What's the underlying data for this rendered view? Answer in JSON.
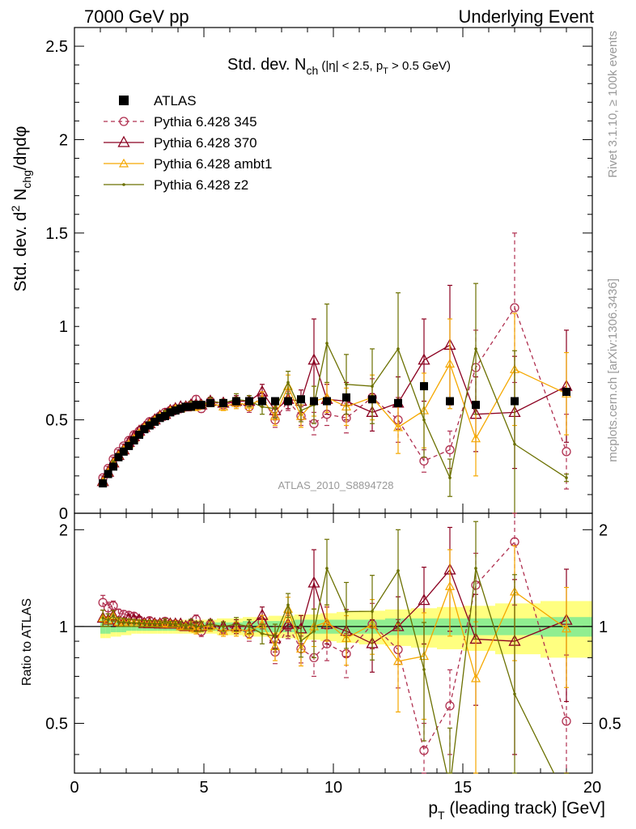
{
  "header": {
    "left": "7000 GeV pp",
    "right": "Underlying Event"
  },
  "side_labels": {
    "rivet": "Rivet 3.1.10, ≥ 100k events",
    "mcplots": "mcplots.cern.ch [arXiv:1306.3436]"
  },
  "colors": {
    "atlas": "#000000",
    "p345": "#b03050",
    "p370": "#8b0020",
    "ambt1": "#f5a800",
    "z2": "#6b7000",
    "band_green": "#90ee90",
    "band_yellow": "#ffff80",
    "watermark": "#999999"
  },
  "chart_data": {
    "type": "line",
    "title_parts": {
      "main": "Std. dev. N",
      "sub": "ch",
      "rest": " (|η| < 2.5, p",
      "sub2": "T",
      "rest2": " > 0.5 GeV)"
    },
    "ylabel_parts": {
      "a": "Std. dev. d",
      "sup": "2",
      "b": " N",
      "sub": "chg",
      "c": "/dηdφ"
    },
    "xlabel_parts": {
      "a": "p",
      "sub": "T",
      "b": " (leading track) [GeV]"
    },
    "ratio_ylabel": "Ratio to ATLAS",
    "watermark": "ATLAS_2010_S8894728",
    "xlim": [
      0,
      20
    ],
    "ylim": [
      0,
      2.6
    ],
    "ratio_ylim": [
      0.35,
      2.25
    ],
    "x_ticks": [
      "0",
      "5",
      "10",
      "15",
      "20"
    ],
    "y_ticks": [
      "0",
      "0.5",
      "1",
      "1.5",
      "2",
      "2.5"
    ],
    "ratio_ticks": [
      "0.5",
      "1",
      "2"
    ],
    "legend_position": "top-left",
    "atlas": {
      "name": "ATLAS",
      "x": [
        1.1,
        1.3,
        1.5,
        1.7,
        1.9,
        2.1,
        2.3,
        2.5,
        2.7,
        2.9,
        3.1,
        3.3,
        3.5,
        3.7,
        3.9,
        4.1,
        4.3,
        4.5,
        4.7,
        4.9,
        5.25,
        5.75,
        6.25,
        6.75,
        7.25,
        7.75,
        8.25,
        8.75,
        9.25,
        9.75,
        10.5,
        11.5,
        12.5,
        13.5,
        14.5,
        15.5,
        17.0,
        19.0
      ],
      "y": [
        0.16,
        0.21,
        0.25,
        0.3,
        0.33,
        0.36,
        0.39,
        0.42,
        0.45,
        0.47,
        0.49,
        0.51,
        0.52,
        0.54,
        0.55,
        0.56,
        0.57,
        0.57,
        0.58,
        0.58,
        0.59,
        0.59,
        0.6,
        0.6,
        0.6,
        0.6,
        0.6,
        0.61,
        0.6,
        0.6,
        0.62,
        0.61,
        0.59,
        0.68,
        0.6,
        0.58,
        0.6,
        0.65
      ],
      "band_yellow": [
        0.08,
        0.08,
        0.07,
        0.07,
        0.06,
        0.06,
        0.05,
        0.05,
        0.05,
        0.05,
        0.05,
        0.05,
        0.05,
        0.05,
        0.05,
        0.05,
        0.05,
        0.05,
        0.05,
        0.05,
        0.05,
        0.06,
        0.06,
        0.07,
        0.07,
        0.08,
        0.08,
        0.09,
        0.09,
        0.1,
        0.11,
        0.12,
        0.13,
        0.14,
        0.15,
        0.16,
        0.18,
        0.2
      ],
      "band_green": [
        0.05,
        0.05,
        0.04,
        0.04,
        0.04,
        0.03,
        0.03,
        0.03,
        0.03,
        0.03,
        0.03,
        0.03,
        0.03,
        0.03,
        0.03,
        0.03,
        0.03,
        0.03,
        0.03,
        0.03,
        0.03,
        0.03,
        0.03,
        0.04,
        0.04,
        0.04,
        0.04,
        0.05,
        0.05,
        0.05,
        0.05,
        0.05,
        0.06,
        0.06,
        0.06,
        0.06,
        0.06,
        0.07
      ]
    },
    "series": [
      {
        "name": "Pythia 6.428 345",
        "marker": "circle",
        "dashed": true,
        "x": [
          1.1,
          1.3,
          1.5,
          1.7,
          1.9,
          2.1,
          2.3,
          2.5,
          2.7,
          2.9,
          3.1,
          3.3,
          3.5,
          3.7,
          3.9,
          4.1,
          4.3,
          4.5,
          4.7,
          4.9,
          5.25,
          5.75,
          6.25,
          6.75,
          7.25,
          7.75,
          8.25,
          8.75,
          9.25,
          9.75,
          10.5,
          11.5,
          12.5,
          13.5,
          14.5,
          15.5,
          17.0,
          19.0
        ],
        "y": [
          0.19,
          0.24,
          0.29,
          0.33,
          0.36,
          0.39,
          0.42,
          0.44,
          0.46,
          0.49,
          0.5,
          0.52,
          0.54,
          0.55,
          0.56,
          0.56,
          0.57,
          0.58,
          0.61,
          0.56,
          0.6,
          0.58,
          0.6,
          0.57,
          0.62,
          0.5,
          0.6,
          0.52,
          0.48,
          0.53,
          0.51,
          0.62,
          0.5,
          0.28,
          0.34,
          0.78,
          1.1,
          0.33
        ],
        "err": [
          0.01,
          0.01,
          0.01,
          0.01,
          0.01,
          0.01,
          0.01,
          0.01,
          0.01,
          0.01,
          0.01,
          0.01,
          0.01,
          0.01,
          0.01,
          0.01,
          0.01,
          0.01,
          0.02,
          0.02,
          0.02,
          0.02,
          0.02,
          0.03,
          0.03,
          0.04,
          0.05,
          0.05,
          0.06,
          0.06,
          0.08,
          0.1,
          0.12,
          0.06,
          0.1,
          0.2,
          0.4,
          0.2
        ]
      },
      {
        "name": "Pythia 6.428 370",
        "marker": "triangle",
        "dashed": false,
        "x": [
          1.1,
          1.3,
          1.5,
          1.7,
          1.9,
          2.1,
          2.3,
          2.5,
          2.7,
          2.9,
          3.1,
          3.3,
          3.5,
          3.7,
          3.9,
          4.1,
          4.3,
          4.5,
          4.7,
          4.9,
          5.25,
          5.75,
          6.25,
          6.75,
          7.25,
          7.75,
          8.25,
          8.75,
          9.25,
          9.75,
          10.5,
          11.5,
          12.5,
          13.5,
          14.5,
          15.5,
          17.0,
          19.0
        ],
        "y": [
          0.17,
          0.22,
          0.27,
          0.31,
          0.34,
          0.38,
          0.41,
          0.44,
          0.46,
          0.48,
          0.5,
          0.52,
          0.53,
          0.55,
          0.56,
          0.57,
          0.57,
          0.58,
          0.58,
          0.58,
          0.6,
          0.59,
          0.6,
          0.6,
          0.65,
          0.55,
          0.61,
          0.6,
          0.82,
          0.61,
          0.6,
          0.54,
          0.59,
          0.82,
          0.9,
          0.53,
          0.54,
          0.68
        ],
        "err": [
          0.01,
          0.01,
          0.01,
          0.01,
          0.01,
          0.01,
          0.01,
          0.01,
          0.01,
          0.01,
          0.01,
          0.01,
          0.01,
          0.01,
          0.01,
          0.01,
          0.01,
          0.02,
          0.02,
          0.02,
          0.02,
          0.02,
          0.03,
          0.03,
          0.04,
          0.05,
          0.05,
          0.06,
          0.22,
          0.08,
          0.1,
          0.1,
          0.14,
          0.22,
          0.32,
          0.2,
          0.3,
          0.3
        ]
      },
      {
        "name": "Pythia 6.428 ambt1",
        "marker": "triangle-small",
        "dashed": false,
        "x": [
          1.1,
          1.3,
          1.5,
          1.7,
          1.9,
          2.1,
          2.3,
          2.5,
          2.7,
          2.9,
          3.1,
          3.3,
          3.5,
          3.7,
          3.9,
          4.1,
          4.3,
          4.5,
          4.7,
          4.9,
          5.25,
          5.75,
          6.25,
          6.75,
          7.25,
          7.75,
          8.25,
          8.75,
          9.25,
          9.75,
          10.5,
          11.5,
          12.5,
          13.5,
          14.5,
          15.5,
          17.0,
          19.0
        ],
        "y": [
          0.17,
          0.22,
          0.27,
          0.31,
          0.34,
          0.37,
          0.4,
          0.43,
          0.46,
          0.48,
          0.5,
          0.52,
          0.53,
          0.55,
          0.56,
          0.56,
          0.57,
          0.57,
          0.57,
          0.58,
          0.59,
          0.57,
          0.59,
          0.58,
          0.61,
          0.52,
          0.68,
          0.52,
          0.6,
          0.62,
          0.57,
          0.62,
          0.46,
          0.55,
          0.8,
          0.4,
          0.77,
          0.64
        ],
        "err": [
          0.01,
          0.01,
          0.01,
          0.01,
          0.01,
          0.01,
          0.01,
          0.01,
          0.01,
          0.01,
          0.01,
          0.01,
          0.01,
          0.01,
          0.01,
          0.01,
          0.01,
          0.02,
          0.02,
          0.02,
          0.02,
          0.02,
          0.03,
          0.03,
          0.04,
          0.05,
          0.06,
          0.06,
          0.08,
          0.08,
          0.1,
          0.12,
          0.14,
          0.2,
          0.24,
          0.2,
          0.3,
          0.22
        ]
      },
      {
        "name": "Pythia 6.428 z2",
        "marker": "dot",
        "dashed": false,
        "x": [
          1.1,
          1.3,
          1.5,
          1.7,
          1.9,
          2.1,
          2.3,
          2.5,
          2.7,
          2.9,
          3.1,
          3.3,
          3.5,
          3.7,
          3.9,
          4.1,
          4.3,
          4.5,
          4.7,
          4.9,
          5.25,
          5.75,
          6.25,
          6.75,
          7.25,
          7.75,
          8.25,
          8.75,
          9.25,
          9.75,
          10.5,
          11.5,
          12.5,
          13.5,
          14.5,
          15.5,
          17.0,
          19.0
        ],
        "y": [
          0.17,
          0.22,
          0.27,
          0.31,
          0.34,
          0.37,
          0.4,
          0.43,
          0.46,
          0.48,
          0.5,
          0.52,
          0.54,
          0.55,
          0.56,
          0.57,
          0.57,
          0.58,
          0.58,
          0.58,
          0.6,
          0.59,
          0.61,
          0.6,
          0.57,
          0.56,
          0.7,
          0.55,
          0.58,
          0.91,
          0.69,
          0.68,
          0.88,
          0.5,
          0.19,
          0.88,
          0.37,
          0.19
        ],
        "err": [
          0.01,
          0.01,
          0.01,
          0.01,
          0.01,
          0.01,
          0.01,
          0.01,
          0.01,
          0.01,
          0.01,
          0.01,
          0.01,
          0.01,
          0.01,
          0.01,
          0.01,
          0.02,
          0.02,
          0.02,
          0.02,
          0.02,
          0.03,
          0.03,
          0.04,
          0.05,
          0.06,
          0.06,
          0.1,
          0.21,
          0.16,
          0.2,
          0.3,
          0.2,
          0.1,
          0.35,
          0.5,
          0.02
        ]
      }
    ]
  }
}
